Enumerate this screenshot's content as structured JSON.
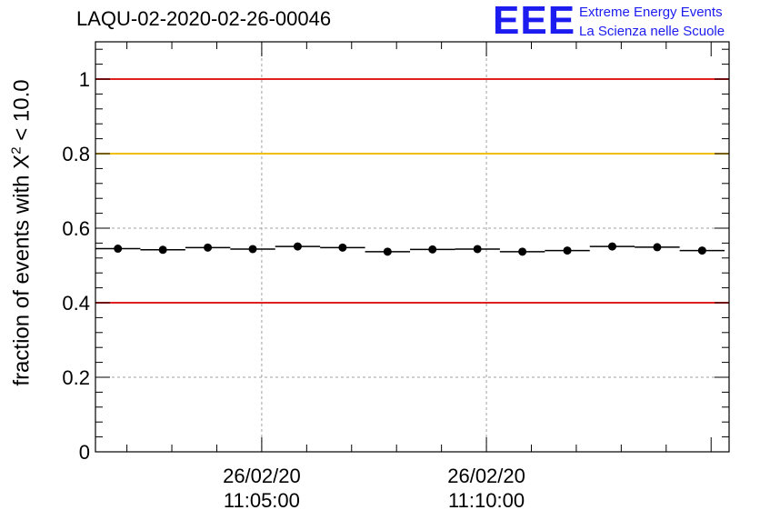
{
  "title": "LAQU-02-2020-02-26-00046",
  "logo": {
    "mark": "EEE",
    "line1": "Extreme Energy Events",
    "line2": "La Scienza nelle Scuole"
  },
  "chart_data": {
    "type": "scatter",
    "title": "LAQU-02-2020-02-26-00046",
    "ylabel_main": "fraction of events with X",
    "ylabel_sup": "2",
    "ylabel_tail": " < 10.0",
    "xlabel": "",
    "ylim": [
      0,
      1.1
    ],
    "yticks": [
      "0",
      "0.2",
      "0.4",
      "0.6",
      "0.8",
      "1"
    ],
    "ytick_values": [
      0,
      0.2,
      0.4,
      0.6,
      0.8,
      1.0
    ],
    "xlim": [
      "11:01:18",
      "11:15:24"
    ],
    "x_major_ticks": [
      {
        "time": "11:05:00",
        "date": "26/02/20"
      },
      {
        "time": "11:10:00",
        "date": "26/02/20"
      }
    ],
    "grid": true,
    "reference_lines": [
      {
        "value": 1.0,
        "color": "#e02020"
      },
      {
        "value": 0.8,
        "color": "#f0c000"
      },
      {
        "value": 0.4,
        "color": "#e02020"
      }
    ],
    "series": [
      {
        "x": [
          "11:01:48",
          "11:02:48",
          "11:03:48",
          "11:04:48",
          "11:05:48",
          "11:06:48",
          "11:07:48",
          "11:08:48",
          "11:09:48",
          "11:10:48",
          "11:11:48",
          "11:12:48",
          "11:13:48",
          "11:14:48"
        ],
        "y": [
          0.545,
          0.542,
          0.548,
          0.544,
          0.551,
          0.548,
          0.537,
          0.543,
          0.544,
          0.537,
          0.54,
          0.551,
          0.549,
          0.54
        ]
      }
    ]
  }
}
